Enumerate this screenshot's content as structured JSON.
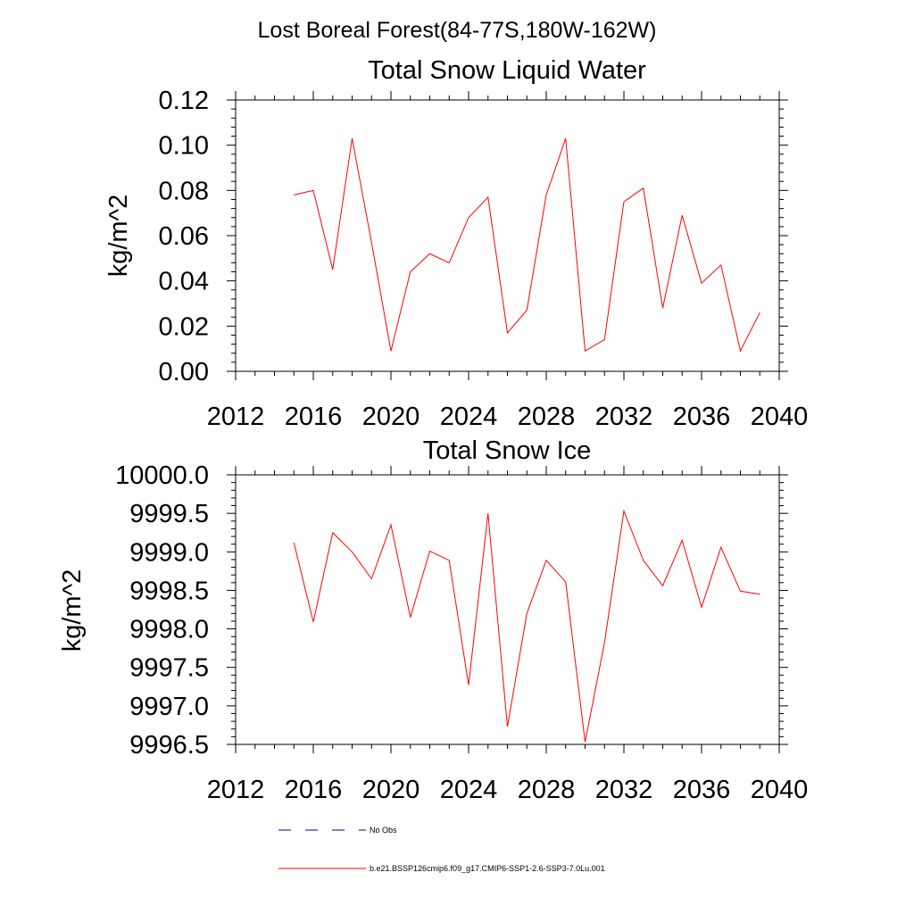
{
  "figure": {
    "suptitle": "Lost Boreal Forest(84-77S,180W-162W)"
  },
  "chart_data": [
    {
      "type": "line",
      "title": "Total Snow Liquid Water",
      "ylabel": "kg/m^2",
      "xlabel": "",
      "xlim": [
        2012,
        2040
      ],
      "ylim": [
        0.0,
        0.12
      ],
      "xticks": [
        2012,
        2016,
        2020,
        2024,
        2028,
        2032,
        2036,
        2040
      ],
      "xtick_labels": [
        "2012",
        "2016",
        "2020",
        "2024",
        "2028",
        "2032",
        "2036",
        "2040"
      ],
      "yticks": [
        0.0,
        0.02,
        0.04,
        0.06,
        0.08,
        0.1,
        0.12
      ],
      "ytick_labels": [
        "0.00",
        "0.02",
        "0.04",
        "0.06",
        "0.08",
        "0.10",
        "0.12"
      ],
      "x": [
        2015,
        2016,
        2017,
        2018,
        2019,
        2020,
        2021,
        2022,
        2023,
        2024,
        2025,
        2026,
        2027,
        2028,
        2029,
        2030,
        2031,
        2032,
        2033,
        2034,
        2035,
        2036,
        2037,
        2038,
        2039
      ],
      "series": [
        {
          "color": "#ff0000",
          "values": [
            0.078,
            0.08,
            0.045,
            0.103,
            0.057,
            0.009,
            0.044,
            0.052,
            0.048,
            0.068,
            0.077,
            0.017,
            0.027,
            0.078,
            0.103,
            0.009,
            0.014,
            0.075,
            0.081,
            0.028,
            0.069,
            0.039,
            0.047,
            0.009,
            0.026
          ]
        }
      ],
      "grid": false
    },
    {
      "type": "line",
      "title": "Total Snow Ice",
      "ylabel": "kg/m^2",
      "xlabel": "",
      "xlim": [
        2012,
        2040
      ],
      "ylim": [
        9996.5,
        10000.0
      ],
      "xticks": [
        2012,
        2016,
        2020,
        2024,
        2028,
        2032,
        2036,
        2040
      ],
      "xtick_labels": [
        "2012",
        "2016",
        "2020",
        "2024",
        "2028",
        "2032",
        "2036",
        "2040"
      ],
      "yticks": [
        9996.5,
        9997.0,
        9997.5,
        9998.0,
        9998.5,
        9999.0,
        9999.5,
        10000.0
      ],
      "ytick_labels": [
        "9996.5",
        "9997.0",
        "9997.5",
        "9998.0",
        "9998.5",
        "9999.0",
        "9999.5",
        "10000.0"
      ],
      "x": [
        2015,
        2016,
        2017,
        2018,
        2019,
        2020,
        2021,
        2022,
        2023,
        2024,
        2025,
        2026,
        2027,
        2028,
        2029,
        2030,
        2031,
        2032,
        2033,
        2034,
        2035,
        2036,
        2037,
        2038,
        2039
      ],
      "series": [
        {
          "color": "#ff0000",
          "values": [
            9999.12,
            9998.09,
            9999.25,
            9999.0,
            9998.65,
            9999.35,
            9998.15,
            9999.01,
            9998.89,
            9997.27,
            9999.5,
            9996.73,
            9998.2,
            9998.89,
            9998.61,
            9996.53,
            9997.82,
            9999.53,
            9998.89,
            9998.56,
            9999.15,
            9998.28,
            9999.06,
            9998.49,
            9998.45
          ]
        }
      ],
      "grid": false
    }
  ],
  "legend": {
    "placement": "bottom",
    "entries": [
      {
        "label": "No Obs",
        "color": "#00007a",
        "style": "dashed"
      },
      {
        "label": "b.e21.BSSP126cmip6.f09_g17.CMIP6-SSP1-2.6-SSP3-7.0Lu.001",
        "color": "#ff0000",
        "style": "solid"
      }
    ]
  }
}
